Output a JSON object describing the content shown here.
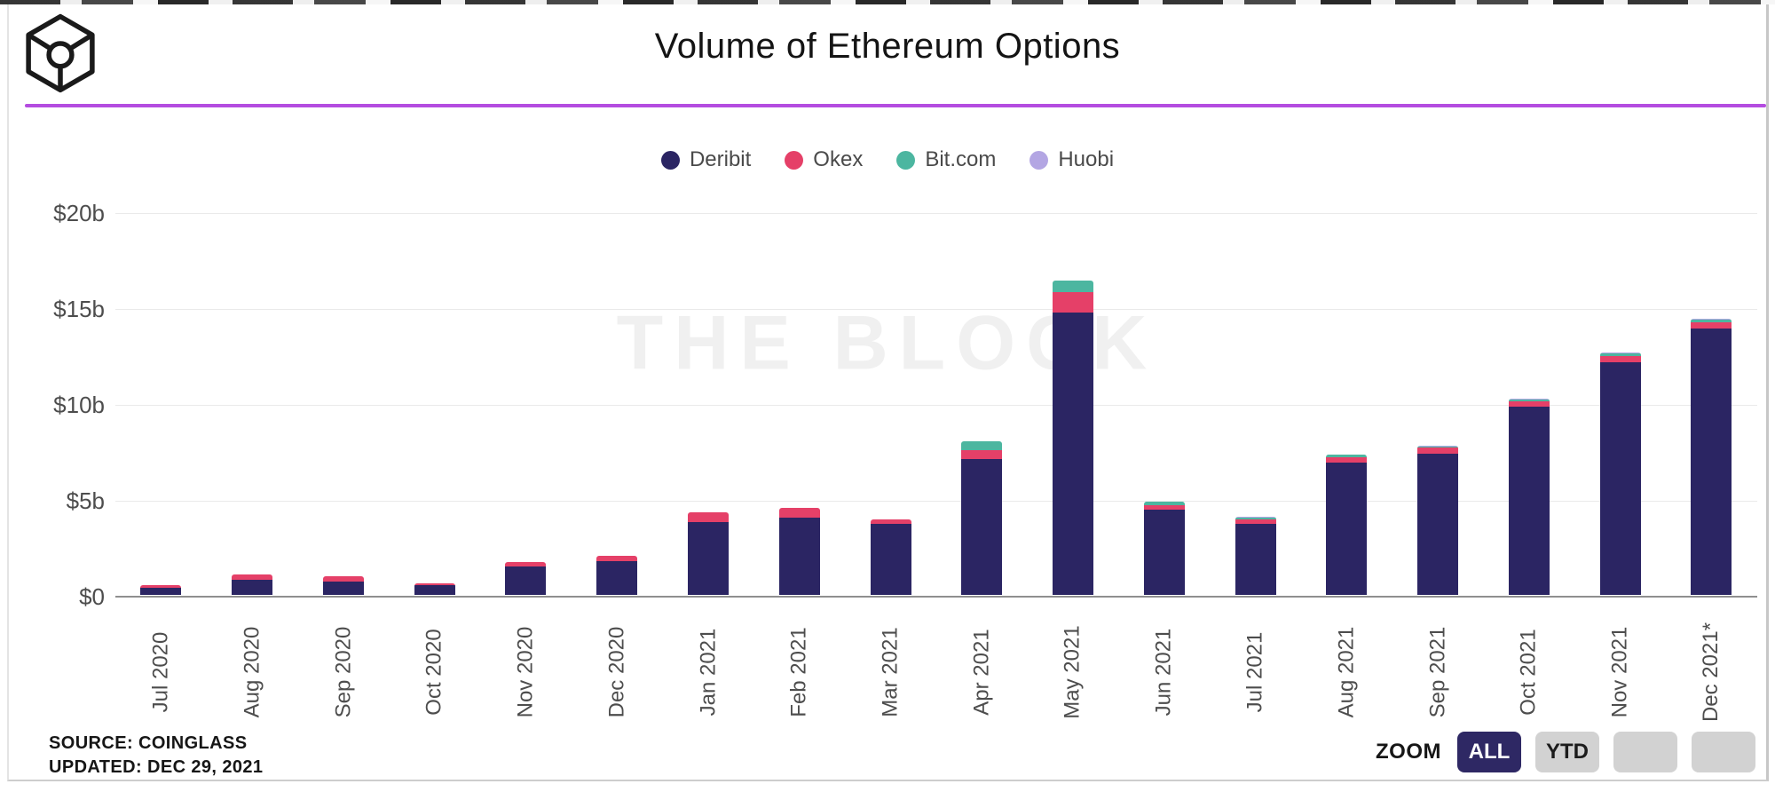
{
  "header": {
    "title": "Volume of Ethereum Options"
  },
  "watermark": "THE BLOCK",
  "colors": {
    "accent_rule": "#b44ce0",
    "button_active_bg": "#2e2864",
    "button_active_text": "#ffffff",
    "button_inactive_bg": "#d2d2d2",
    "axis_text": "#4d4d4d"
  },
  "chart_data": {
    "type": "bar",
    "stacked": true,
    "title": "Volume of Ethereum Options",
    "xlabel": "",
    "ylabel": "",
    "ylim": [
      0,
      20
    ],
    "grid": true,
    "legend_position": "top-center",
    "categories": [
      "Jul 2020",
      "Aug 2020",
      "Sep 2020",
      "Oct 2020",
      "Nov 2020",
      "Dec 2020",
      "Jan 2021",
      "Feb 2021",
      "Mar 2021",
      "Apr 2021",
      "May 2021",
      "Jun 2021",
      "Jul 2021",
      "Aug 2021",
      "Sep 2021",
      "Oct 2021",
      "Nov 2021",
      "Dec 2021*"
    ],
    "y_ticks": [
      {
        "label": "$20b",
        "value": 20
      },
      {
        "label": "$15b",
        "value": 15
      },
      {
        "label": "$10b",
        "value": 10
      },
      {
        "label": "$5b",
        "value": 5
      },
      {
        "label": "$0",
        "value": 0
      }
    ],
    "unit": "billions USD",
    "series": [
      {
        "name": "Deribit",
        "color": "#2b2563",
        "values": [
          0.38,
          0.8,
          0.7,
          0.5,
          1.5,
          1.75,
          3.8,
          4.05,
          3.7,
          7.1,
          14.7,
          4.45,
          3.7,
          6.9,
          7.35,
          9.8,
          12.15,
          13.9
        ]
      },
      {
        "name": "Okex",
        "color": "#e54068",
        "values": [
          0.12,
          0.25,
          0.26,
          0.12,
          0.22,
          0.3,
          0.52,
          0.5,
          0.22,
          0.45,
          1.1,
          0.25,
          0.25,
          0.3,
          0.35,
          0.3,
          0.3,
          0.3
        ]
      },
      {
        "name": "Bit.com",
        "color": "#4cb6a0",
        "values": [
          0,
          0,
          0,
          0,
          0,
          0,
          0,
          0,
          0,
          0.45,
          0.6,
          0.15,
          0.1,
          0.1,
          0.05,
          0.1,
          0.15,
          0.15
        ]
      },
      {
        "name": "Huobi",
        "color": "#b3a6e3",
        "values": [
          0,
          0,
          0,
          0,
          0,
          0,
          0,
          0,
          0,
          0,
          0,
          0.03,
          0.03,
          0.03,
          0.03,
          0.05,
          0.05,
          0.05
        ]
      }
    ]
  },
  "footer": {
    "source_line1": "SOURCE: COINGLASS",
    "source_line2": "UPDATED: DEC 29, 2021",
    "zoom_label": "ZOOM",
    "buttons": [
      {
        "label": "ALL",
        "active": true
      },
      {
        "label": "YTD",
        "active": false
      },
      {
        "label": "",
        "active": false
      },
      {
        "label": "",
        "active": false
      }
    ]
  }
}
